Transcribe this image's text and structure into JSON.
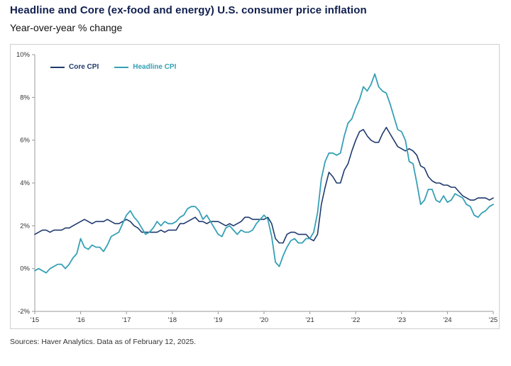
{
  "chart_data": {
    "type": "line",
    "title": "Headline and Core (ex-food and energy) U.S. consumer price inflation",
    "subtitle": "Year-over-year % change",
    "x_frequency": "monthly",
    "x_range": [
      "2015-01",
      "2025-01"
    ],
    "x_tick_labels": [
      "'15",
      "'16",
      "'17",
      "'18",
      "'19",
      "'20",
      "'21",
      "'22",
      "'23",
      "'24",
      "'25"
    ],
    "ylim": [
      -2,
      10
    ],
    "y_tick_labels": [
      "10%",
      "8%",
      "6%",
      "4%",
      "2%",
      "0%",
      "-2%"
    ],
    "grid": false,
    "legend_position": "top-left",
    "axis_color": "#999999",
    "series": [
      {
        "name": "Core CPI",
        "color": "#1f3a6e",
        "values": [
          1.6,
          1.7,
          1.8,
          1.8,
          1.7,
          1.8,
          1.8,
          1.8,
          1.9,
          1.9,
          2.0,
          2.1,
          2.2,
          2.3,
          2.2,
          2.1,
          2.2,
          2.2,
          2.2,
          2.3,
          2.2,
          2.1,
          2.1,
          2.2,
          2.3,
          2.2,
          2.0,
          1.9,
          1.7,
          1.7,
          1.7,
          1.7,
          1.7,
          1.8,
          1.7,
          1.8,
          1.8,
          1.8,
          2.1,
          2.1,
          2.2,
          2.3,
          2.4,
          2.2,
          2.2,
          2.1,
          2.2,
          2.2,
          2.2,
          2.1,
          2.0,
          2.1,
          2.0,
          2.1,
          2.2,
          2.4,
          2.4,
          2.3,
          2.3,
          2.3,
          2.3,
          2.4,
          2.1,
          1.4,
          1.2,
          1.2,
          1.6,
          1.7,
          1.7,
          1.6,
          1.6,
          1.6,
          1.4,
          1.3,
          1.6,
          3.0,
          3.8,
          4.5,
          4.3,
          4.0,
          4.0,
          4.6,
          4.9,
          5.5,
          6.0,
          6.4,
          6.5,
          6.2,
          6.0,
          5.9,
          5.9,
          6.3,
          6.6,
          6.3,
          6.0,
          5.7,
          5.6,
          5.5,
          5.6,
          5.5,
          5.3,
          4.8,
          4.7,
          4.3,
          4.1,
          4.0,
          4.0,
          3.9,
          3.9,
          3.8,
          3.8,
          3.6,
          3.4,
          3.3,
          3.2,
          3.2,
          3.3,
          3.3,
          3.3,
          3.2,
          3.3
        ]
      },
      {
        "name": "Headline CPI",
        "color": "#36a0b5",
        "values": [
          -0.1,
          0.0,
          -0.1,
          -0.2,
          0.0,
          0.1,
          0.2,
          0.2,
          0.0,
          0.2,
          0.5,
          0.7,
          1.4,
          1.0,
          0.9,
          1.1,
          1.0,
          1.0,
          0.8,
          1.1,
          1.5,
          1.6,
          1.7,
          2.1,
          2.5,
          2.7,
          2.4,
          2.2,
          1.9,
          1.6,
          1.7,
          1.9,
          2.2,
          2.0,
          2.2,
          2.1,
          2.1,
          2.2,
          2.4,
          2.5,
          2.8,
          2.9,
          2.9,
          2.7,
          2.3,
          2.5,
          2.2,
          1.9,
          1.6,
          1.5,
          1.9,
          2.0,
          1.8,
          1.6,
          1.8,
          1.7,
          1.7,
          1.8,
          2.1,
          2.3,
          2.5,
          2.3,
          1.5,
          0.3,
          0.1,
          0.6,
          1.0,
          1.3,
          1.4,
          1.2,
          1.2,
          1.4,
          1.4,
          1.7,
          2.6,
          4.2,
          5.0,
          5.4,
          5.4,
          5.3,
          5.4,
          6.2,
          6.8,
          7.0,
          7.5,
          7.9,
          8.5,
          8.3,
          8.6,
          9.1,
          8.5,
          8.3,
          8.2,
          7.7,
          7.1,
          6.5,
          6.4,
          6.0,
          5.0,
          4.9,
          4.0,
          3.0,
          3.2,
          3.7,
          3.7,
          3.2,
          3.1,
          3.4,
          3.1,
          3.2,
          3.5,
          3.4,
          3.3,
          3.0,
          2.9,
          2.5,
          2.4,
          2.6,
          2.7,
          2.9,
          3.0
        ]
      }
    ],
    "source_note": "Sources: Haver Analytics. Data as of February 12, 2025."
  }
}
